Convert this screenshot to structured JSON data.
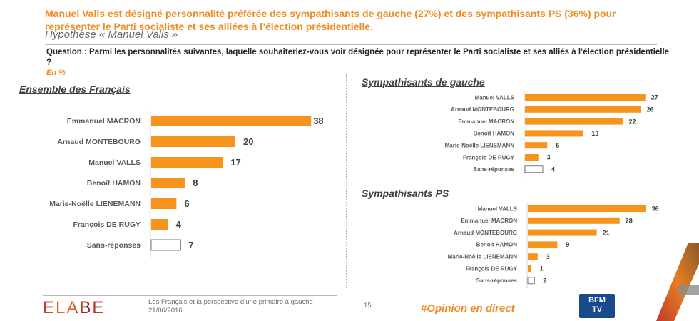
{
  "header": {
    "headline": "Manuel Valls est désigné personnalité préférée des sympathisants de gauche (27%) et des sympathisants PS (36%) pour représenter le Parti socialiste et ses alliées à l’élection présidentielle.",
    "hypothesis": "Hypothèse « Manuel Valls »",
    "question": "Question : Parmi les personnalités suivantes, laquelle souhaiteriez-vous voir désignée pour représenter le Parti socialiste et ses alliés à l’élection présidentielle ?",
    "unit": "En %"
  },
  "colors": {
    "accent": "#f08c23",
    "bar": "#f7941d",
    "no_answer_bar": "#ffffff",
    "text": "#404040"
  },
  "chart_data": [
    {
      "type": "bar",
      "orientation": "horizontal",
      "title": "Ensemble des Français",
      "categories": [
        "Emmanuel MACRON",
        "Arnaud MONTEBOURG",
        "Manuel VALLS",
        "Benoît HAMON",
        "Marie-Noëlle LIENEMANN",
        "François DE RUGY",
        "Sans-réponses"
      ],
      "values": [
        38,
        20,
        17,
        8,
        6,
        4,
        7
      ],
      "unit": "%",
      "xlim": [
        0,
        40
      ],
      "grid": false,
      "legend": "none"
    },
    {
      "type": "bar",
      "orientation": "horizontal",
      "title": "Sympathisants de gauche",
      "categories": [
        "Manuel VALLS",
        "Arnaud MONTEBOURG",
        "Emmanuel MACRON",
        "Benoît HAMON",
        "Marie-Noëlle LIENEMANN",
        "François DE RUGY",
        "Sans-réponses"
      ],
      "values": [
        27,
        26,
        22,
        13,
        5,
        3,
        4
      ],
      "unit": "%",
      "xlim": [
        0,
        40
      ],
      "grid": false,
      "legend": "none"
    },
    {
      "type": "bar",
      "orientation": "horizontal",
      "title": "Sympathisants PS",
      "categories": [
        "Manuel VALLS",
        "Emmanuel MACRON",
        "Arnaud MONTEBOURG",
        "Benoît HAMON",
        "Marie-Noëlle LIENEMANN",
        "François DE RUGY",
        "Sans-réponses"
      ],
      "values": [
        36,
        28,
        21,
        9,
        3,
        1,
        2
      ],
      "unit": "%",
      "xlim": [
        0,
        40
      ],
      "grid": false,
      "legend": "none"
    }
  ],
  "footer": {
    "logo": "ELABE",
    "study_title": "Les Français et la perspective d’une primaire à gauche",
    "date": "21/06/2016",
    "page_number": "15",
    "hashtag": "#Opinion en direct",
    "partner_logo_top": "BFM",
    "partner_logo_bottom": "TV"
  }
}
